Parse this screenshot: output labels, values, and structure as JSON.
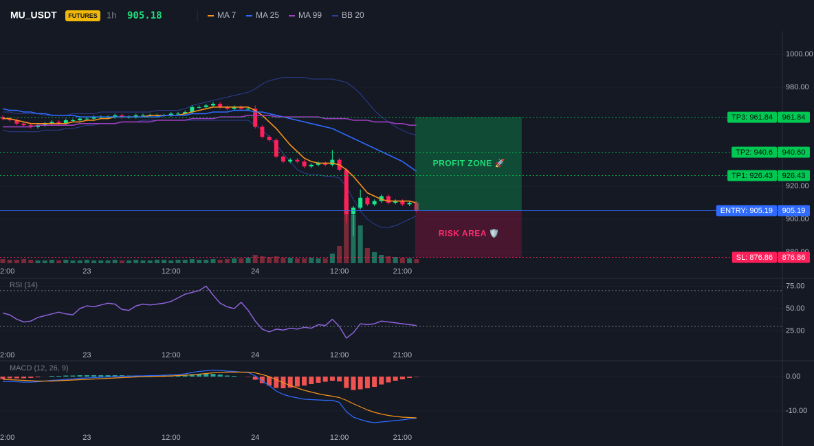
{
  "header": {
    "symbol": "MU_USDT",
    "badge": "FUTURES",
    "interval": "1h",
    "price": 905.18
  },
  "chart_data": [
    {
      "type": "candlestick",
      "categories": [
        "2:00",
        null,
        null,
        null,
        null,
        null,
        null,
        null,
        null,
        null,
        null,
        null,
        "23",
        null,
        null,
        null,
        null,
        null,
        null,
        null,
        null,
        null,
        null,
        null,
        "12:00",
        null,
        null,
        null,
        null,
        null,
        null,
        null,
        null,
        null,
        null,
        null,
        "24",
        null,
        null,
        null,
        null,
        null,
        null,
        null,
        null,
        null,
        null,
        null,
        "12:00",
        null,
        null,
        null,
        null,
        null,
        null,
        null,
        null,
        "21:00",
        null,
        null
      ],
      "open": [
        962,
        961,
        960,
        958,
        957,
        956,
        957,
        958,
        959,
        958,
        960,
        960,
        961,
        961,
        962,
        962,
        962,
        963,
        962,
        962,
        963,
        963,
        963,
        963,
        963,
        964,
        964,
        965,
        968,
        968,
        969,
        970,
        968,
        967,
        968,
        967,
        967,
        956,
        950,
        948,
        938,
        935,
        936,
        935,
        932,
        933,
        934,
        933,
        936,
        930,
        903,
        907,
        913,
        909,
        911,
        914,
        910,
        911,
        909,
        910
      ],
      "high": [
        963,
        962,
        961,
        959,
        958,
        958,
        959,
        960,
        960,
        961,
        961,
        962,
        962,
        963,
        963,
        963,
        964,
        964,
        963,
        964,
        964,
        964,
        964,
        964,
        965,
        965,
        966,
        969,
        969,
        970,
        971,
        971,
        969,
        969,
        969,
        968,
        969,
        957,
        951,
        949,
        939,
        937,
        937,
        936,
        934,
        935,
        935,
        942,
        937,
        931,
        908,
        918,
        914,
        912,
        915,
        915,
        912,
        912,
        911,
        911
      ],
      "low": [
        960,
        959,
        957,
        956,
        955,
        955,
        956,
        957,
        957,
        957,
        959,
        959,
        960,
        960,
        961,
        961,
        961,
        961,
        961,
        961,
        962,
        962,
        962,
        962,
        962,
        963,
        963,
        964,
        967,
        967,
        968,
        967,
        966,
        966,
        966,
        966,
        955,
        949,
        947,
        937,
        934,
        934,
        934,
        931,
        931,
        932,
        932,
        932,
        929,
        898,
        890,
        906,
        908,
        908,
        910,
        909,
        909,
        908,
        908,
        904
      ],
      "close": [
        961,
        960,
        958,
        957,
        956,
        957,
        958,
        959,
        958,
        960,
        960,
        961,
        961,
        962,
        962,
        962,
        963,
        962,
        962,
        963,
        963,
        963,
        963,
        963,
        964,
        964,
        965,
        968,
        968,
        969,
        970,
        968,
        967,
        968,
        967,
        967,
        956,
        950,
        948,
        938,
        935,
        936,
        935,
        932,
        933,
        934,
        933,
        936,
        930,
        903,
        907,
        913,
        909,
        911,
        914,
        910,
        911,
        909,
        910,
        905
      ],
      "volume": [
        6,
        5,
        5,
        6,
        5,
        4,
        4,
        5,
        4,
        5,
        4,
        4,
        5,
        4,
        4,
        4,
        5,
        4,
        4,
        5,
        4,
        4,
        5,
        5,
        4,
        5,
        5,
        6,
        5,
        5,
        6,
        5,
        6,
        7,
        7,
        8,
        12,
        10,
        9,
        10,
        8,
        8,
        7,
        7,
        8,
        7,
        7,
        14,
        25,
        95,
        70,
        55,
        22,
        16,
        12,
        10,
        9,
        8,
        7,
        6
      ],
      "up_color": "#19e68c",
      "down_color": "#ff1f5a",
      "volume_up_color": "#1f6f5c",
      "volume_down_color": "#7b2936",
      "ylim": [
        873.3,
        1014.2
      ],
      "yticks": [
        {
          "value": 1000,
          "label": "1000.00"
        },
        {
          "value": 980,
          "label": "980.00"
        },
        {
          "value": 920,
          "label": "920.00"
        },
        {
          "value": 900,
          "label": "900.00"
        },
        {
          "value": 880,
          "label": "880.00"
        }
      ],
      "series": [
        {
          "name": "MA 7",
          "color": "#f7931a",
          "values": [
            961,
            961,
            960,
            959,
            958,
            958,
            958,
            958,
            958,
            958,
            959,
            959,
            960,
            960,
            961,
            961,
            962,
            962,
            962,
            962,
            962,
            963,
            963,
            963,
            963,
            963,
            964,
            965,
            966,
            967,
            968,
            968,
            968,
            968,
            968,
            968,
            966,
            963,
            959,
            955,
            950,
            945,
            941,
            937,
            935,
            934,
            934,
            934,
            933,
            930,
            926,
            921,
            916,
            914,
            912,
            911,
            911,
            911,
            911,
            910
          ]
        },
        {
          "name": "MA 25",
          "color": "#2f6bff",
          "values": [
            967,
            966,
            966,
            965,
            965,
            964,
            964,
            963,
            963,
            963,
            963,
            962,
            962,
            962,
            962,
            962,
            962,
            962,
            962,
            962,
            962,
            962,
            962,
            963,
            963,
            963,
            963,
            964,
            964,
            964,
            965,
            965,
            965,
            966,
            966,
            966,
            965,
            965,
            964,
            963,
            962,
            961,
            960,
            959,
            958,
            957,
            956,
            955,
            953,
            951,
            949,
            947,
            945,
            943,
            941,
            939,
            937,
            935,
            932,
            929
          ]
        },
        {
          "name": "MA 99",
          "color": "#9c3fc0",
          "values": [
            956,
            956,
            956,
            956,
            956,
            957,
            957,
            957,
            957,
            957,
            957,
            958,
            958,
            958,
            958,
            958,
            958,
            959,
            959,
            959,
            959,
            959,
            960,
            960,
            960,
            960,
            960,
            961,
            961,
            961,
            961,
            962,
            962,
            962,
            962,
            963,
            963,
            963,
            963,
            962,
            962,
            962,
            962,
            962,
            962,
            962,
            961,
            961,
            961,
            961,
            960,
            960,
            960,
            959,
            959,
            959,
            958,
            958,
            957,
            957
          ]
        },
        {
          "name": "BB 20",
          "color": "#2c3f94",
          "values": [
            965,
            965,
            964,
            964,
            964,
            964,
            963,
            963,
            963,
            963,
            964,
            964,
            964,
            964,
            965,
            965,
            965,
            965,
            965,
            965,
            965,
            965,
            966,
            966,
            966,
            966,
            967,
            969,
            970,
            971,
            972,
            973,
            974,
            975,
            976,
            977,
            979,
            982,
            984,
            985,
            986,
            986,
            986,
            986,
            985,
            985,
            985,
            985,
            984,
            983,
            980,
            976,
            971,
            966,
            962,
            959,
            956,
            954,
            952,
            951
          ],
          "lower": [
            954,
            953,
            953,
            953,
            953,
            953,
            954,
            954,
            954,
            955,
            955,
            956,
            957,
            957,
            958,
            958,
            958,
            959,
            959,
            959,
            960,
            960,
            960,
            960,
            960,
            960,
            960,
            960,
            960,
            960,
            960,
            960,
            960,
            960,
            960,
            960,
            957,
            954,
            950,
            945,
            940,
            935,
            930,
            928,
            927,
            927,
            926,
            926,
            925,
            920,
            912,
            905,
            900,
            897,
            895,
            895,
            896,
            898,
            900,
            902
          ]
        }
      ],
      "levels": [
        {
          "label": "TP3: 961.84",
          "value": 961.84,
          "value_label": "961.84",
          "color": "#00c853",
          "text_color": "#06140c",
          "style": "dotted"
        },
        {
          "label": "TP2: 940.6",
          "value": 940.6,
          "value_label": "940.60",
          "color": "#00c853",
          "text_color": "#06140c",
          "style": "dotted"
        },
        {
          "label": "TP1: 926.43",
          "value": 926.43,
          "value_label": "926.43",
          "color": "#00c853",
          "text_color": "#06140c",
          "style": "dotted"
        },
        {
          "label": "ENTRY: 905.19",
          "value": 905.19,
          "value_label": "905.19",
          "color": "#2f6bff",
          "text_color": "#ffffff",
          "style": "solid"
        },
        {
          "label": "SL: 876.86",
          "value": 876.86,
          "value_label": "876.86",
          "color": "#ff1f5a",
          "text_color": "#ffffff",
          "style": "dotted"
        }
      ],
      "zones": [
        {
          "label": "PROFIT ZONE 🚀",
          "from": 905.19,
          "to": 961.84,
          "color": "#0b8a4c",
          "text_color": "#1fe07a"
        },
        {
          "label": "RISK AREA 🛡️",
          "from": 876.86,
          "to": 905.19,
          "color": "#8a1440",
          "text_color": "#ff2d6e"
        }
      ]
    },
    {
      "type": "line",
      "title": "RSI (14)",
      "categories": [
        "2:00",
        null,
        null,
        null,
        null,
        null,
        null,
        null,
        null,
        null,
        null,
        null,
        "23",
        null,
        null,
        null,
        null,
        null,
        null,
        null,
        null,
        null,
        null,
        null,
        "12:00",
        null,
        null,
        null,
        null,
        null,
        null,
        null,
        null,
        null,
        null,
        null,
        "24",
        null,
        null,
        null,
        null,
        null,
        null,
        null,
        null,
        null,
        null,
        null,
        "12:00",
        null,
        null,
        null,
        null,
        null,
        null,
        null,
        null,
        "21:00",
        null,
        null
      ],
      "values": [
        45,
        43,
        38,
        35,
        36,
        40,
        42,
        44,
        46,
        44,
        43,
        50,
        53,
        52,
        54,
        56,
        55,
        49,
        48,
        53,
        55,
        54,
        55,
        56,
        58,
        62,
        66,
        68,
        70,
        75,
        65,
        56,
        52,
        50,
        57,
        48,
        36,
        27,
        24,
        27,
        26,
        28,
        27,
        29,
        28,
        32,
        31,
        38,
        30,
        17,
        23,
        33,
        32,
        33,
        36,
        35,
        34,
        33,
        32,
        31
      ],
      "color": "#8c62d9",
      "levels": [
        70,
        30
      ],
      "ylim": [
        7,
        83
      ],
      "yticks": [
        {
          "value": 75,
          "label": "75.00"
        },
        {
          "value": 50,
          "label": "50.00"
        },
        {
          "value": 25,
          "label": "25.00"
        }
      ]
    },
    {
      "type": "macd",
      "title": "MACD (12, 26, 9)",
      "categories": [
        "2:00",
        null,
        null,
        null,
        null,
        null,
        null,
        null,
        null,
        null,
        null,
        null,
        "23",
        null,
        null,
        null,
        null,
        null,
        null,
        null,
        null,
        null,
        null,
        null,
        "12:00",
        null,
        null,
        null,
        null,
        null,
        null,
        null,
        null,
        null,
        null,
        null,
        "24",
        null,
        null,
        null,
        null,
        null,
        null,
        null,
        null,
        null,
        null,
        null,
        "12:00",
        null,
        null,
        null,
        null,
        null,
        null,
        null,
        null,
        "21:00",
        null,
        null
      ],
      "series": [
        {
          "color": "#2f6bff",
          "values": [
            -1.5,
            -1.4,
            -1.5,
            -1.6,
            -1.6,
            -1.5,
            -1.3,
            -1.1,
            -1.0,
            -0.8,
            -0.7,
            -0.5,
            -0.4,
            -0.3,
            -0.2,
            -0.1,
            0,
            0.1,
            0.1,
            0.2,
            0.2,
            0.3,
            0.3,
            0.4,
            0.5,
            0.6,
            0.8,
            1.2,
            1.5,
            1.7,
            1.9,
            1.8,
            1.6,
            1.5,
            1.3,
            1.2,
            0.2,
            -1.3,
            -2.6,
            -4.2,
            -5.2,
            -5.8,
            -6.2,
            -6.6,
            -6.7,
            -6.8,
            -6.9,
            -6.9,
            -7.5,
            -10.2,
            -11.8,
            -12.5,
            -13.1,
            -13.4,
            -13.2,
            -13.0,
            -12.8,
            -12.6,
            -12.3,
            -12.1
          ]
        },
        {
          "color": "#f7931a",
          "values": [
            -0.8,
            -0.9,
            -1.0,
            -1.1,
            -1.2,
            -1.3,
            -1.3,
            -1.3,
            -1.2,
            -1.1,
            -1.0,
            -0.9,
            -0.8,
            -0.7,
            -0.6,
            -0.5,
            -0.4,
            -0.3,
            -0.2,
            -0.1,
            0,
            0,
            0.1,
            0.1,
            0.2,
            0.3,
            0.4,
            0.5,
            0.7,
            0.9,
            1.1,
            1.2,
            1.3,
            1.3,
            1.3,
            1.3,
            1.1,
            0.6,
            0,
            -0.9,
            -1.8,
            -2.6,
            -3.3,
            -4,
            -4.5,
            -5,
            -5.4,
            -5.7,
            -6.1,
            -6.9,
            -7.9,
            -8.8,
            -9.7,
            -10.4,
            -10.9,
            -11.3,
            -11.6,
            -11.8,
            -11.9,
            -12.0
          ]
        }
      ],
      "histogram": [
        -0.7,
        -0.5,
        -0.5,
        -0.5,
        -0.4,
        -0.2,
        0,
        0.2,
        0.2,
        0.3,
        0.3,
        0.4,
        0.4,
        0.4,
        0.4,
        0.4,
        0.4,
        0.4,
        0.3,
        0.3,
        0.2,
        0.3,
        0.2,
        0.3,
        0.3,
        0.3,
        0.4,
        0.7,
        0.8,
        0.8,
        0.8,
        0.6,
        0.3,
        0.2,
        0,
        -0.1,
        -0.9,
        -1.9,
        -2.6,
        -3.3,
        -3.4,
        -3.2,
        -2.9,
        -2.6,
        -2.2,
        -1.8,
        -1.5,
        -1.2,
        -1.4,
        -3.3,
        -3.9,
        -3.7,
        -3.4,
        -3.0,
        -2.3,
        -1.7,
        -1.2,
        -0.8,
        -0.4,
        -0.1
      ],
      "hist_up_color": "#26a69a",
      "hist_down_color": "#ef5350",
      "ylim": [
        -15.4,
        4.2
      ],
      "yticks": [
        {
          "value": 0,
          "label": "0.00"
        },
        {
          "value": -10,
          "label": "-10.00"
        }
      ]
    }
  ]
}
